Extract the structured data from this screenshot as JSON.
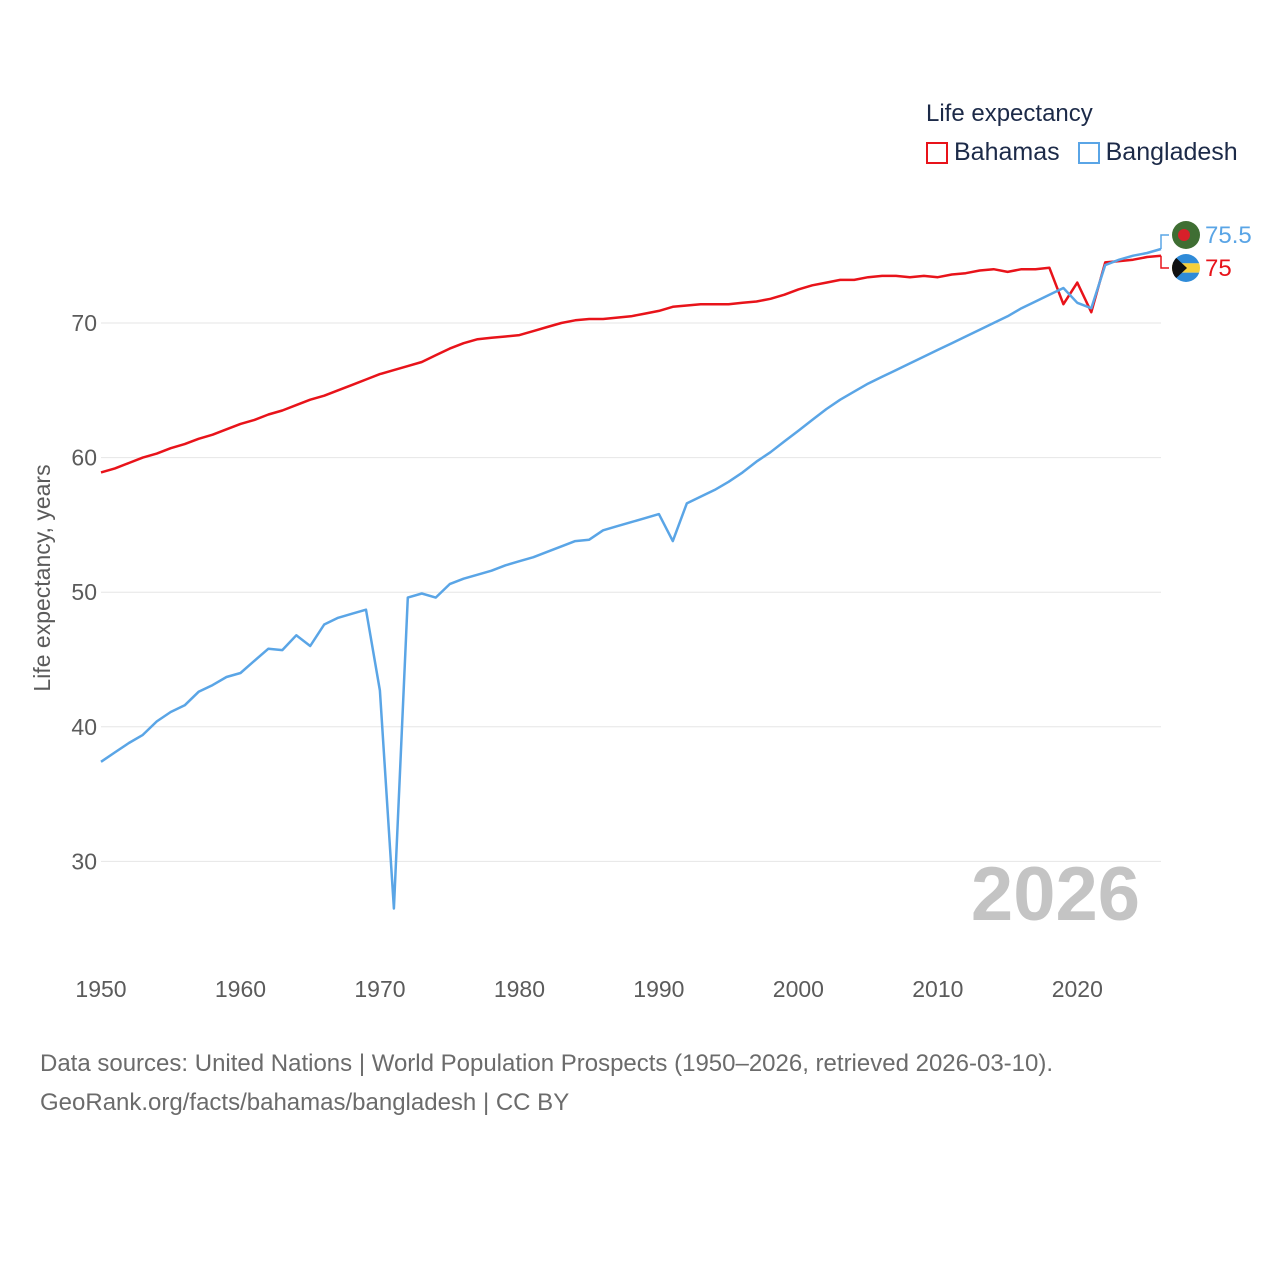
{
  "legend": {
    "title": "Life expectancy"
  },
  "source": {
    "line1": "Data sources: United Nations | World Population Prospects (1950–2026, retrieved 2026-03-10).",
    "line2": "GeoRank.org/facts/bahamas/bangladesh | CC BY"
  },
  "chart_data": {
    "type": "line",
    "title": "Life expectancy",
    "xlabel": "",
    "ylabel": "Life expectancy, years",
    "xlim": [
      1950,
      2026
    ],
    "ylim": [
      23.5,
      80
    ],
    "x_ticks": [
      1950,
      1960,
      1970,
      1980,
      1990,
      2000,
      2010,
      2020
    ],
    "y_ticks": [
      30,
      40,
      50,
      60,
      70
    ],
    "grid": true,
    "watermark": "2026",
    "legend_position": "top-right",
    "x": [
      1950,
      1951,
      1952,
      1953,
      1954,
      1955,
      1956,
      1957,
      1958,
      1959,
      1960,
      1961,
      1962,
      1963,
      1964,
      1965,
      1966,
      1967,
      1968,
      1969,
      1970,
      1971,
      1972,
      1973,
      1974,
      1975,
      1976,
      1977,
      1978,
      1979,
      1980,
      1981,
      1982,
      1983,
      1984,
      1985,
      1986,
      1987,
      1988,
      1989,
      1990,
      1991,
      1992,
      1993,
      1994,
      1995,
      1996,
      1997,
      1998,
      1999,
      2000,
      2001,
      2002,
      2003,
      2004,
      2005,
      2006,
      2007,
      2008,
      2009,
      2010,
      2011,
      2012,
      2013,
      2014,
      2015,
      2016,
      2017,
      2018,
      2019,
      2020,
      2021,
      2022,
      2023,
      2024,
      2025,
      2026
    ],
    "series": [
      {
        "name": "Bahamas",
        "color": "#e8131a",
        "end_label": "75",
        "flag": "bahamas-flag-icon",
        "values": [
          58.9,
          59.2,
          59.6,
          60.0,
          60.3,
          60.7,
          61.0,
          61.4,
          61.7,
          62.1,
          62.5,
          62.8,
          63.2,
          63.5,
          63.9,
          64.3,
          64.6,
          65.0,
          65.4,
          65.8,
          66.2,
          66.5,
          66.8,
          67.1,
          67.6,
          68.1,
          68.5,
          68.8,
          68.9,
          69.0,
          69.1,
          69.4,
          69.7,
          70.0,
          70.2,
          70.3,
          70.3,
          70.4,
          70.5,
          70.7,
          70.9,
          71.2,
          71.3,
          71.4,
          71.4,
          71.4,
          71.5,
          71.6,
          71.8,
          72.1,
          72.5,
          72.8,
          73.0,
          73.2,
          73.2,
          73.4,
          73.5,
          73.5,
          73.4,
          73.5,
          73.4,
          73.6,
          73.7,
          73.9,
          74.0,
          73.8,
          74.0,
          74.0,
          74.1,
          71.4,
          73.0,
          70.8,
          74.5,
          74.6,
          74.7,
          74.9,
          75.0
        ]
      },
      {
        "name": "Bangladesh",
        "color": "#5aa5e6",
        "end_label": "75.5",
        "flag": "bangladesh-flag-icon",
        "values": [
          37.4,
          38.1,
          38.8,
          39.4,
          40.4,
          41.1,
          41.6,
          42.6,
          43.1,
          43.7,
          44.0,
          44.9,
          45.8,
          45.7,
          46.8,
          46.0,
          47.6,
          48.1,
          48.4,
          48.7,
          42.7,
          26.5,
          49.6,
          49.9,
          49.6,
          50.6,
          51.0,
          51.3,
          51.6,
          52.0,
          52.3,
          52.6,
          53.0,
          53.4,
          53.8,
          53.9,
          54.6,
          54.9,
          55.2,
          55.5,
          55.8,
          53.8,
          56.6,
          57.1,
          57.6,
          58.2,
          58.9,
          59.7,
          60.4,
          61.2,
          62.0,
          62.8,
          63.6,
          64.3,
          64.9,
          65.5,
          66.0,
          66.5,
          67.0,
          67.5,
          68.0,
          68.5,
          69.0,
          69.5,
          70.0,
          70.5,
          71.1,
          71.6,
          72.1,
          72.6,
          71.5,
          71.1,
          74.3,
          74.7,
          75.0,
          75.2,
          75.5
        ]
      }
    ]
  }
}
